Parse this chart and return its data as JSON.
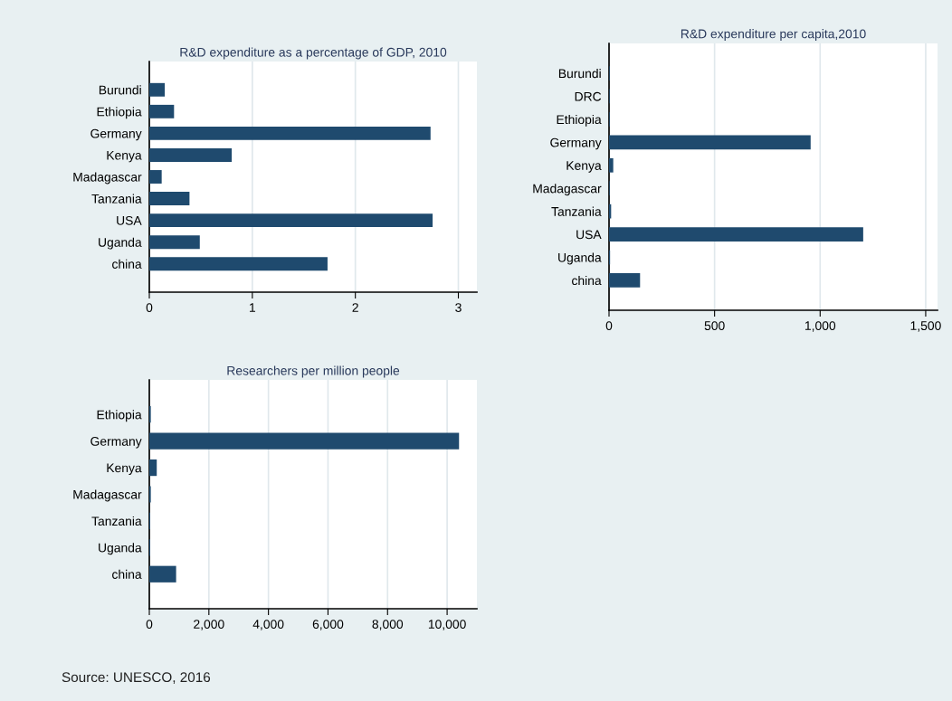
{
  "chart_data": [
    {
      "type": "bar",
      "orientation": "horizontal",
      "title": "R&D expenditure as a percentage of GDP, 2010",
      "categories": [
        "Burundi",
        "Ethiopia",
        "Germany",
        "Kenya",
        "Madagascar",
        "Tanzania",
        "USA",
        "Uganda",
        "china"
      ],
      "values": [
        0.15,
        0.24,
        2.73,
        0.8,
        0.12,
        0.39,
        2.75,
        0.49,
        1.73
      ],
      "color": "#1f4a6e",
      "xlim": [
        0,
        3.18
      ],
      "xticks": [
        0,
        1,
        2,
        3
      ],
      "grid": "x",
      "legend": false
    },
    {
      "type": "bar",
      "orientation": "horizontal",
      "title": "R&D expenditure per capita,2010",
      "categories": [
        "Burundi",
        "DRC",
        "Ethiopia",
        "Germany",
        "Kenya",
        "Madagascar",
        "Tanzania",
        "USA",
        "Uganda",
        "china"
      ],
      "values": [
        3,
        3,
        3,
        955,
        20,
        3,
        10,
        1204,
        5,
        147
      ],
      "color": "#1f4a6e",
      "xlim": [
        0,
        1556
      ],
      "xticks": [
        0,
        500,
        {
          "value": 1000,
          "label": "1,000"
        },
        {
          "value": 1500,
          "label": "1,500"
        }
      ],
      "grid": "x",
      "legend": false
    },
    {
      "type": "bar",
      "orientation": "horizontal",
      "title": "Researchers per million people",
      "categories": [
        "Ethiopia",
        "Germany",
        "Kenya",
        "Madagascar",
        "Tanzania",
        "Uganda",
        "china"
      ],
      "values": [
        50,
        10400,
        250,
        50,
        30,
        30,
        900
      ],
      "color": "#1f4a6e",
      "xlim": [
        0,
        11000
      ],
      "xticks": [
        0,
        {
          "value": 2000,
          "label": "2,000"
        },
        {
          "value": 4000,
          "label": "4,000"
        },
        {
          "value": 6000,
          "label": "6,000"
        },
        {
          "value": 8000,
          "label": "8,000"
        },
        {
          "value": 10000,
          "label": "10,000"
        }
      ],
      "grid": "x",
      "legend": false,
      "annotations": [
        "Source: UNESCO, 2016"
      ]
    }
  ]
}
